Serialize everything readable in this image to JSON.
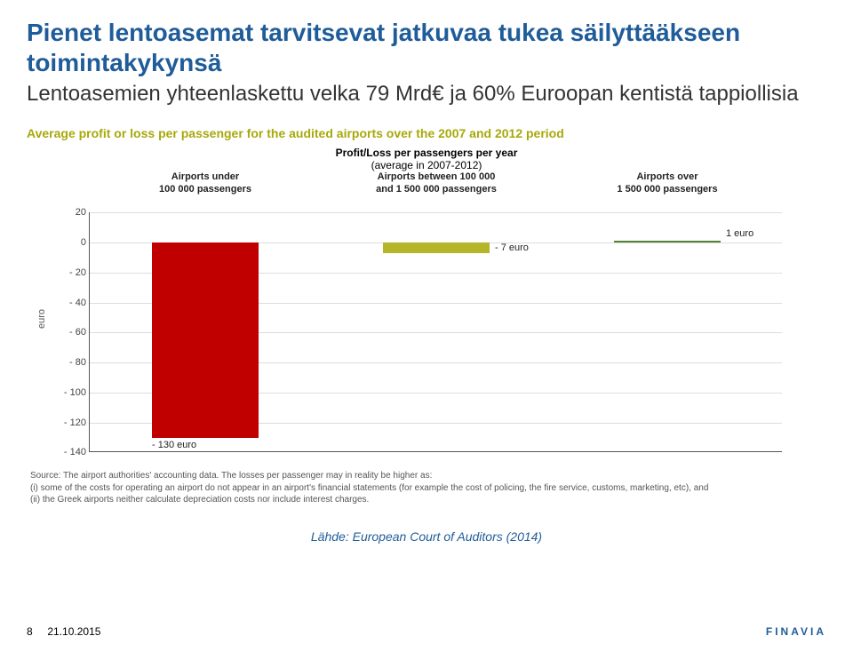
{
  "colors": {
    "title": "#1f5c99",
    "subtitle": "#333333",
    "chartHeader": "#a8a80a",
    "cite": "#1f5c99",
    "brand": "#1f5c99",
    "footerText": "#333333",
    "barNeg": "#c00000",
    "barMid": "#b5b52a",
    "barPos": "#548235"
  },
  "title": "Pienet lentoasemat tarvitsevat jatkuvaa tukea säilyttääkseen toimintakykynsä",
  "subtitle": "Lentoasemien yhteenlaskettu velka 79 Mrd€ ja 60% Euroopan kentistä tappiollisia",
  "chartHeader": "Average profit or loss per passenger for the audited airports over the 2007 and 2012 period",
  "chartTitle1": "Profit/Loss per passengers per year",
  "chartTitle2": "(average in 2007-2012)",
  "yAxisLabel": "euro",
  "chart": {
    "ymin": -140,
    "ymax": 20,
    "ystep": 20,
    "categories": [
      {
        "title1": "Airports under",
        "title2": "100 000 passengers",
        "value": -130,
        "label": "- 130 euro",
        "color": "#c00000"
      },
      {
        "title1": "Airports between 100 000",
        "title2": "and 1 500 000 passengers",
        "value": -7,
        "label": "- 7 euro",
        "color": "#b5b52a"
      },
      {
        "title1": "Airports over",
        "title2": "1 500 000 passengers",
        "value": 1,
        "label": "1 euro",
        "color": "#548235"
      }
    ]
  },
  "sourceLines": [
    "Source: The airport authorities' accounting data. The losses per passenger may in reality be higher as:",
    "(i) some of the costs for operating an airport do not appear in an airport's financial statements (for example the cost of policing, the fire service, customs, marketing, etc), and",
    "(ii) the Greek airports neither calculate depreciation costs nor include interest charges."
  ],
  "cite": "Lähde: European Court of Auditors (2014)",
  "footer": {
    "page": "8",
    "date": "21.10.2015",
    "brand": "FINAVIA"
  }
}
